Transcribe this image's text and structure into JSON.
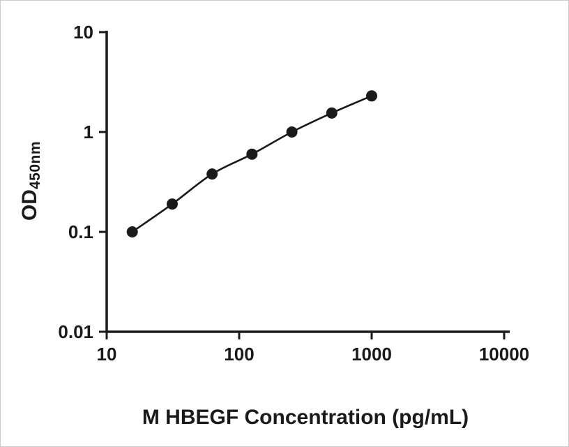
{
  "chart_data": {
    "type": "scatter",
    "title": "",
    "xlabel": "M HBEGF Concentration (pg/mL)",
    "ylabel_main": "OD",
    "ylabel_sub": "450nm",
    "x": [
      15.6,
      31.25,
      62.5,
      125,
      250,
      500,
      1000
    ],
    "y": [
      0.1,
      0.19,
      0.38,
      0.6,
      1.0,
      1.55,
      2.3
    ],
    "xscale": "log",
    "yscale": "log",
    "xlim": [
      10,
      10000
    ],
    "ylim": [
      0.01,
      10
    ],
    "x_ticks": [
      10,
      100,
      1000,
      10000
    ],
    "x_tick_labels": [
      "10",
      "100",
      "1000",
      "10000"
    ],
    "y_ticks": [
      0.01,
      0.1,
      1,
      10
    ],
    "y_tick_labels": [
      "0.01",
      "0.1",
      "1",
      "10"
    ],
    "grid": false,
    "legend": "none",
    "marker": "circle",
    "marker_color": "#1a1a1a",
    "line_color": "#1a1a1a",
    "axis_color": "#1a1a1a",
    "background": "#ffffff"
  }
}
